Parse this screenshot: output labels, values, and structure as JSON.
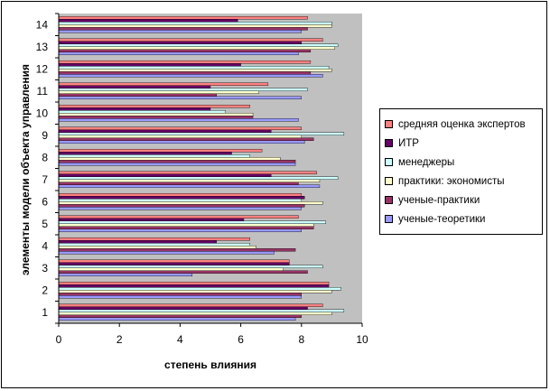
{
  "chart_data": {
    "type": "bar",
    "orientation": "horizontal",
    "xlabel": "степень влияния",
    "ylabel": "элементы модели объекта управления",
    "xlim": [
      0,
      10
    ],
    "xticks": [
      0,
      2,
      4,
      6,
      8,
      10
    ],
    "categories": [
      "1",
      "2",
      "3",
      "4",
      "5",
      "6",
      "7",
      "8",
      "9",
      "10",
      "11",
      "12",
      "13",
      "14"
    ],
    "plot_background": "#C0C0C0",
    "series": [
      {
        "name": "ученые-теоретики",
        "color": "#9999FF",
        "values": [
          7.8,
          8.0,
          4.4,
          7.1,
          8.0,
          8.0,
          8.6,
          7.8,
          8.1,
          7.9,
          8.0,
          8.7,
          7.9,
          8.0
        ]
      },
      {
        "name": "ученые-практики",
        "color": "#993366",
        "values": [
          8.0,
          8.0,
          8.2,
          7.8,
          8.4,
          8.1,
          7.9,
          7.8,
          8.4,
          6.4,
          5.2,
          8.3,
          8.3,
          8.2
        ]
      },
      {
        "name": "практики: экономисты",
        "color": "#FFFFCC",
        "values": [
          9.0,
          9.0,
          7.4,
          6.5,
          8.4,
          8.7,
          8.6,
          7.3,
          8.0,
          6.4,
          6.6,
          9.0,
          9.1,
          9.0
        ]
      },
      {
        "name": "менеджеры",
        "color": "#CCFFFF",
        "values": [
          9.4,
          9.3,
          8.7,
          6.3,
          8.8,
          8.0,
          9.2,
          6.3,
          9.4,
          5.5,
          8.2,
          8.9,
          9.2,
          9.0
        ]
      },
      {
        "name": "ИТР",
        "color": "#660066",
        "values": [
          8.2,
          8.9,
          7.6,
          5.2,
          6.1,
          8.1,
          7.0,
          5.7,
          7.0,
          5.0,
          5.0,
          6.0,
          8.0,
          5.9
        ]
      },
      {
        "name": "средняя оценка экспертов",
        "color": "#FF8080",
        "values": [
          8.7,
          8.9,
          7.6,
          6.3,
          7.9,
          8.0,
          8.5,
          6.7,
          8.0,
          6.3,
          6.9,
          8.3,
          8.7,
          8.2
        ]
      }
    ],
    "legend_position": "right"
  }
}
